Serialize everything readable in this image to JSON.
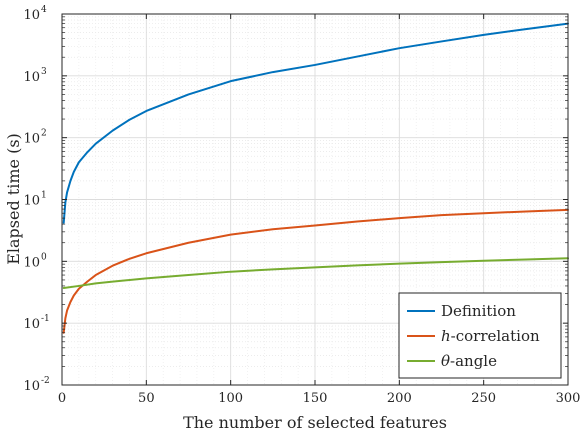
{
  "chart_data": {
    "type": "line",
    "title": "",
    "xlabel": "The number of selected features",
    "ylabel": "Elapsed time (s)",
    "x_scale": "linear",
    "y_scale": "log",
    "xlim": [
      0,
      300
    ],
    "ylim": [
      0.01,
      10000
    ],
    "grid": true,
    "x_ticks": [
      0,
      50,
      100,
      150,
      200,
      250,
      300
    ],
    "x_tick_labels": [
      "0",
      "50",
      "100",
      "150",
      "200",
      "250",
      "300"
    ],
    "y_ticks": [
      0.01,
      0.1,
      1,
      10,
      100,
      1000,
      10000
    ],
    "y_tick_labels": [
      {
        "base": "10",
        "exp": "-2"
      },
      {
        "base": "10",
        "exp": "-1"
      },
      {
        "base": "10",
        "exp": "0"
      },
      {
        "base": "10",
        "exp": "1"
      },
      {
        "base": "10",
        "exp": "2"
      },
      {
        "base": "10",
        "exp": "3"
      },
      {
        "base": "10",
        "exp": "4"
      }
    ],
    "legend_position": "bottom-right",
    "series": [
      {
        "name": "Definition",
        "color": "#0072BD",
        "x": [
          1,
          2,
          3,
          5,
          7,
          10,
          15,
          20,
          30,
          40,
          50,
          75,
          100,
          125,
          150,
          175,
          200,
          225,
          250,
          275,
          300
        ],
        "y": [
          4.2,
          9,
          13,
          20,
          28,
          40,
          58,
          80,
          130,
          195,
          270,
          500,
          820,
          1150,
          1500,
          2050,
          2800,
          3600,
          4600,
          5700,
          7000
        ]
      },
      {
        "name": "h-correlation",
        "label_italic": "h",
        "label_rest": "-correlation",
        "color": "#D95319",
        "x": [
          1,
          2,
          3,
          5,
          7,
          10,
          15,
          20,
          30,
          40,
          50,
          75,
          100,
          125,
          150,
          175,
          200,
          225,
          250,
          275,
          300
        ],
        "y": [
          0.07,
          0.12,
          0.16,
          0.22,
          0.28,
          0.36,
          0.47,
          0.6,
          0.85,
          1.1,
          1.35,
          2.0,
          2.7,
          3.3,
          3.8,
          4.4,
          5.0,
          5.6,
          6.0,
          6.4,
          6.8
        ]
      },
      {
        "name": "θ-angle",
        "label_italic": "θ",
        "label_rest": "-angle",
        "color": "#77AC30",
        "x": [
          1,
          10,
          20,
          30,
          50,
          75,
          100,
          125,
          150,
          175,
          200,
          225,
          250,
          275,
          300
        ],
        "y": [
          0.37,
          0.4,
          0.44,
          0.47,
          0.53,
          0.6,
          0.68,
          0.74,
          0.8,
          0.86,
          0.92,
          0.97,
          1.02,
          1.07,
          1.12
        ]
      }
    ]
  }
}
